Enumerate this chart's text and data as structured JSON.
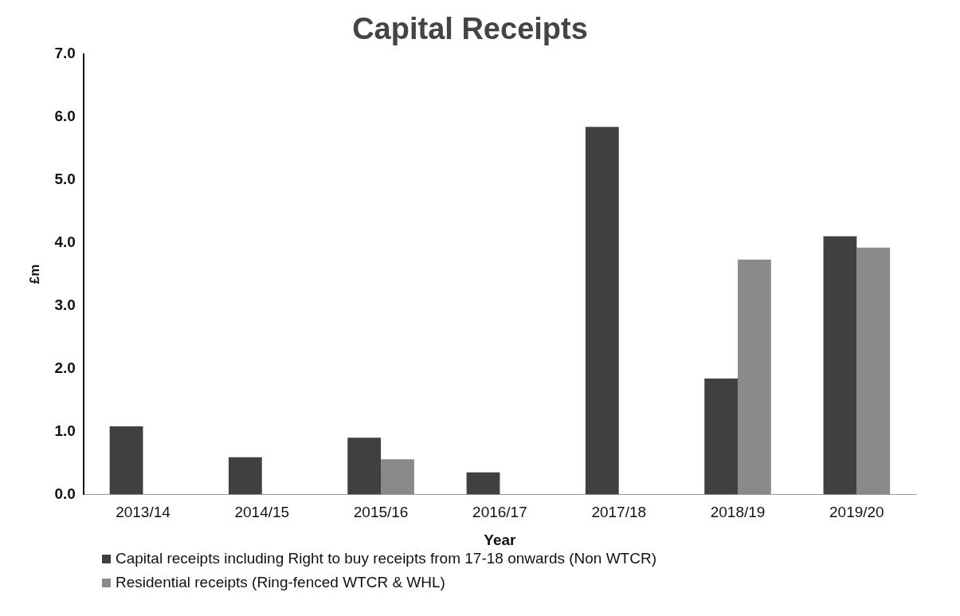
{
  "chart_data": {
    "type": "bar",
    "title": "Capital Receipts",
    "xlabel": "Year",
    "ylabel": "£m",
    "categories": [
      "2013/14",
      "2014/15",
      "2015/16",
      "2016/17",
      "2017/18",
      "2018/19",
      "2019/20"
    ],
    "series": [
      {
        "name": "Capital receipts including Right to buy receipts from 17-18 onwards (Non WTCR)",
        "color": "#404040",
        "values": [
          1.08,
          0.59,
          0.9,
          0.35,
          5.84,
          1.84,
          4.1
        ]
      },
      {
        "name": "Residential receipts (Ring-fenced WTCR & WHL)",
        "color": "#8a8a8a",
        "values": [
          null,
          null,
          0.56,
          null,
          null,
          3.73,
          3.92
        ]
      }
    ],
    "ylim": [
      0,
      7
    ],
    "yticks": [
      {
        "value": 0,
        "label": "0.0"
      },
      {
        "value": 1,
        "label": "1.0"
      },
      {
        "value": 2,
        "label": "2.0"
      },
      {
        "value": 3,
        "label": "3.0"
      },
      {
        "value": 4,
        "label": "4.0"
      },
      {
        "value": 5,
        "label": "5.0"
      },
      {
        "value": 6,
        "label": "6.0"
      },
      {
        "value": 7,
        "label": "7.0"
      }
    ],
    "grid": false,
    "legend": "bottom left"
  }
}
